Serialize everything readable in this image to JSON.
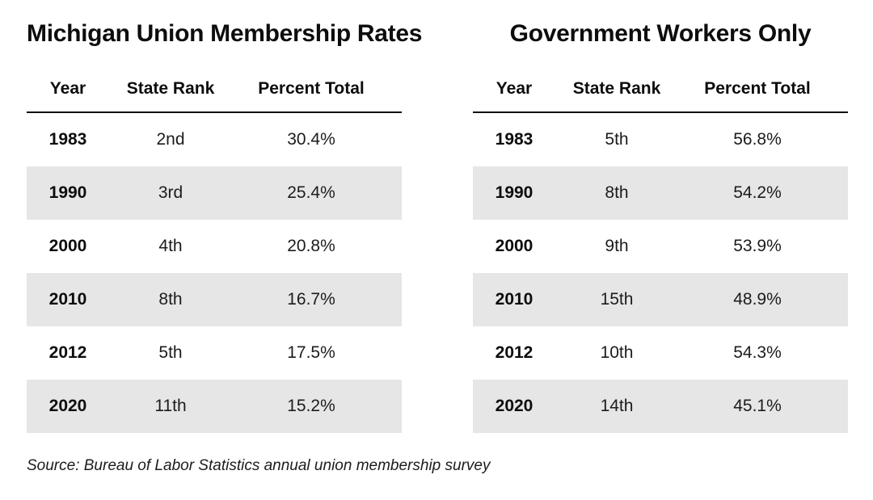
{
  "page": {
    "background_color": "#ffffff",
    "zebra_row_color": "#e6e6e6",
    "rule_color": "#111111",
    "text_color": "#1c1c1c"
  },
  "source_note": "Source: Bureau of Labor Statistics annual union membership survey",
  "chart_data": [
    {
      "type": "table",
      "title": "Michigan Union Membership Rates",
      "columns": [
        "Year",
        "State Rank",
        "Percent Total"
      ],
      "rows": [
        [
          "1983",
          "2nd",
          "30.4%"
        ],
        [
          "1990",
          "3rd",
          "25.4%"
        ],
        [
          "2000",
          "4th",
          "20.8%"
        ],
        [
          "2010",
          "8th",
          "16.7%"
        ],
        [
          "2012",
          "5th",
          "17.5%"
        ],
        [
          "2020",
          "11th",
          "15.2%"
        ]
      ],
      "layout": {
        "zebra_striping": "even rows shaded",
        "header_rule": true,
        "legend": "none",
        "grid": "off"
      }
    },
    {
      "type": "table",
      "title": "Government Workers Only",
      "columns": [
        "Year",
        "State Rank",
        "Percent Total"
      ],
      "rows": [
        [
          "1983",
          "5th",
          "56.8%"
        ],
        [
          "1990",
          "8th",
          "54.2%"
        ],
        [
          "2000",
          "9th",
          "53.9%"
        ],
        [
          "2010",
          "15th",
          "48.9%"
        ],
        [
          "2012",
          "10th",
          "54.3%"
        ],
        [
          "2020",
          "14th",
          "45.1%"
        ]
      ],
      "layout": {
        "zebra_striping": "even rows shaded",
        "header_rule": true,
        "legend": "none",
        "grid": "off"
      }
    }
  ]
}
